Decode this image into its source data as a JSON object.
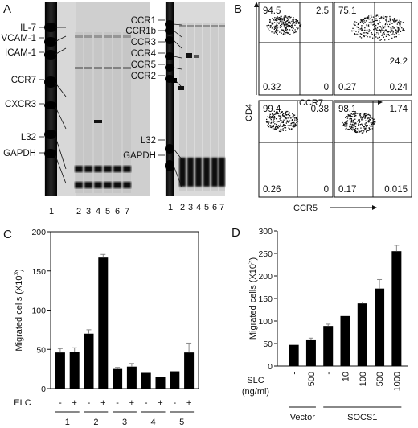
{
  "panels": {
    "a": {
      "label": "A",
      "gel1": {
        "bands": [
          "IL-7",
          "VCAM-1",
          "ICAM-1",
          "CCR7",
          "CXCR3",
          "L32",
          "GAPDH"
        ],
        "lanes": [
          "1",
          "2",
          "3",
          "4",
          "5",
          "6",
          "7"
        ]
      },
      "gel2": {
        "bands": [
          "CCR1",
          "CCR1b",
          "CCR3",
          "CCR4",
          "CCR5",
          "CCR2",
          "L32",
          "GAPDH"
        ],
        "lanes": [
          "1",
          "2",
          "3",
          "4",
          "5",
          "6",
          "7"
        ]
      }
    },
    "b": {
      "label": "B",
      "ylabel": "CD4",
      "plots": [
        {
          "quadrants": [
            "94.5",
            "2.5",
            "0.32",
            "0"
          ],
          "xlabel": ""
        },
        {
          "quadrants": [
            "75.1",
            "24.2",
            "0.27",
            "0.24"
          ],
          "xlabel": ""
        },
        {
          "quadrants": [
            "99.4",
            "0.38",
            "0.26",
            "0"
          ],
          "xlabel": ""
        },
        {
          "quadrants": [
            "98.1",
            "1.74",
            "0.17",
            "0.015"
          ],
          "xlabel": ""
        }
      ],
      "xlabels": [
        "CCR7",
        "CCR5"
      ]
    }
  },
  "chart_data": [
    {
      "panel": "C",
      "type": "bar",
      "ylabel": "Migrated cells (X10^3)",
      "ylabel_main": "Migrated cells (X10",
      "ylabel_sup": "3",
      "ylabel_end": ")",
      "ylim": [
        0,
        200
      ],
      "yticks": [
        "0",
        "50",
        "100",
        "150",
        "200"
      ],
      "condition_label": "ELC",
      "conditions": [
        "-",
        "+",
        "-",
        "+",
        "-",
        "+",
        "-",
        "+",
        "-",
        "+"
      ],
      "groups": [
        "1",
        "2",
        "3",
        "4",
        "5"
      ],
      "values": [
        46,
        47,
        70,
        167,
        25,
        28,
        20,
        15,
        22,
        46
      ],
      "errors": [
        5,
        5,
        5,
        4,
        2,
        4,
        0,
        0,
        0,
        12
      ]
    },
    {
      "panel": "D",
      "type": "bar",
      "ylabel": "Migrated cells (X10^3)",
      "ylabel_main": "Migrated cells (X10",
      "ylabel_sup": "3",
      "ylabel_end": ")",
      "ylim": [
        0,
        300
      ],
      "yticks": [
        "0",
        "50",
        "100",
        "150",
        "200",
        "250",
        "300"
      ],
      "condition_label": "SLC",
      "condition_unit": "(ng/ml)",
      "conditions": [
        "-",
        "500",
        "-",
        "10",
        "100",
        "500",
        "1000"
      ],
      "groups": [
        "Vector",
        "SOCS1"
      ],
      "values": [
        47,
        59,
        89,
        111,
        139,
        172,
        255
      ],
      "errors": [
        0,
        3,
        4,
        0,
        3,
        20,
        13
      ]
    }
  ]
}
